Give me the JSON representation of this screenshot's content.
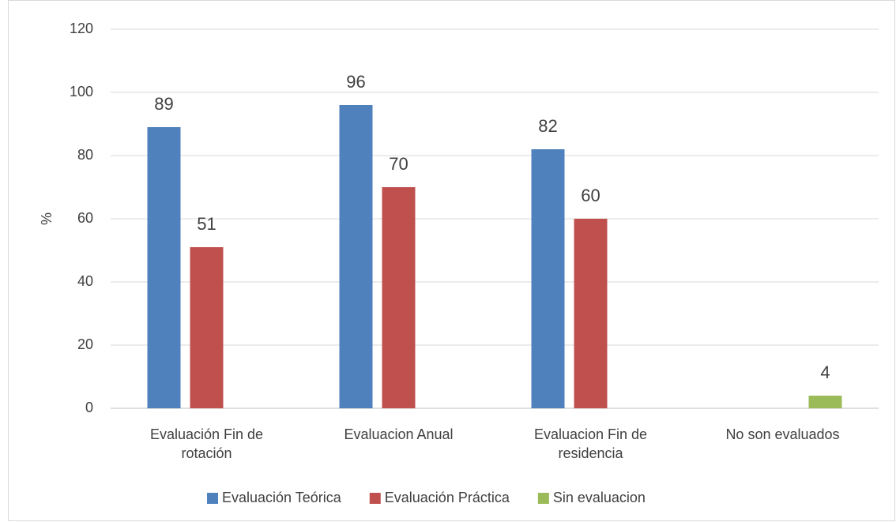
{
  "chart_data": {
    "type": "bar",
    "categories": [
      "Evaluación Fin de rotación",
      "Evaluacion Anual",
      "Evaluacion Fin de residencia",
      "No son evaluados"
    ],
    "series": [
      {
        "name": "Evaluación Teórica",
        "color": "#4f81bd",
        "values": [
          89,
          96,
          82,
          null
        ]
      },
      {
        "name": "Evaluación Práctica",
        "color": "#c0504d",
        "values": [
          51,
          70,
          60,
          null
        ]
      },
      {
        "name": "Sin evaluacion",
        "color": "#9bbb59",
        "values": [
          null,
          null,
          null,
          4
        ]
      }
    ],
    "y_label": "%",
    "ylim": [
      0,
      120
    ],
    "yticks": [
      0,
      20,
      40,
      60,
      80,
      100,
      120
    ],
    "grid": true,
    "legend": "bottom"
  }
}
